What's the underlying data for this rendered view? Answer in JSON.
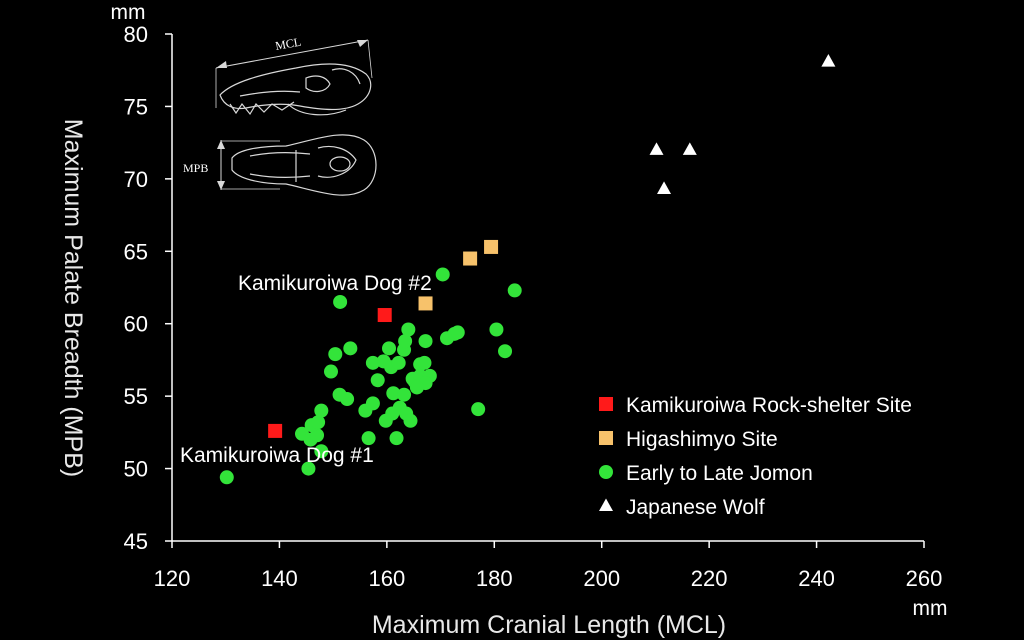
{
  "chart_data": {
    "type": "scatter",
    "title": "",
    "xlabel": "Maximum Cranial Length (MCL)",
    "ylabel": "Maximum Palate Breadth (MPB)",
    "x_unit": "mm",
    "y_unit": "mm",
    "xlim": [
      120,
      260
    ],
    "ylim": [
      45,
      80
    ],
    "x_ticks": [
      "120",
      "140",
      "160",
      "180",
      "200",
      "220",
      "240",
      "260"
    ],
    "y_ticks": [
      "45",
      "50",
      "55",
      "60",
      "65",
      "70",
      "75",
      "80"
    ],
    "grid": false,
    "legend_position": "bottom-right",
    "series": [
      {
        "name": "Kamikuroiwa Rock-shelter Site",
        "marker": "square",
        "color": "#ff1a1a",
        "points": [
          [
            139.2,
            52.6
          ],
          [
            159.6,
            60.6
          ]
        ]
      },
      {
        "name": "Higashimyo Site",
        "marker": "square",
        "color": "#f7c26b",
        "points": [
          [
            167.2,
            61.4
          ],
          [
            175.5,
            64.5
          ],
          [
            179.4,
            65.3
          ]
        ]
      },
      {
        "name": "Early to Late Jomon",
        "marker": "circle",
        "color": "#33e43a",
        "points": [
          [
            130.2,
            49.4
          ],
          [
            145.4,
            50.0
          ],
          [
            147.8,
            51.2
          ],
          [
            144.2,
            52.4
          ],
          [
            145.8,
            52.0
          ],
          [
            147.0,
            52.3
          ],
          [
            146.0,
            53.0
          ],
          [
            147.2,
            53.2
          ],
          [
            147.8,
            54.0
          ],
          [
            149.6,
            56.7
          ],
          [
            150.4,
            57.9
          ],
          [
            151.2,
            55.1
          ],
          [
            152.6,
            54.8
          ],
          [
            153.2,
            58.3
          ],
          [
            151.3,
            61.5
          ],
          [
            156.0,
            54.0
          ],
          [
            156.6,
            52.1
          ],
          [
            157.4,
            54.5
          ],
          [
            158.3,
            56.1
          ],
          [
            159.4,
            57.4
          ],
          [
            160.4,
            58.3
          ],
          [
            160.8,
            57.0
          ],
          [
            161.2,
            55.2
          ],
          [
            161.0,
            53.8
          ],
          [
            161.8,
            52.1
          ],
          [
            162.4,
            54.2
          ],
          [
            162.2,
            57.3
          ],
          [
            163.2,
            58.2
          ],
          [
            163.4,
            58.8
          ],
          [
            164.0,
            59.6
          ],
          [
            163.2,
            55.1
          ],
          [
            163.6,
            53.8
          ],
          [
            164.4,
            53.3
          ],
          [
            164.8,
            56.2
          ],
          [
            165.2,
            56.0
          ],
          [
            166.2,
            57.2
          ],
          [
            166.2,
            56.4
          ],
          [
            167.0,
            57.3
          ],
          [
            167.2,
            58.8
          ],
          [
            168.0,
            56.4
          ],
          [
            167.2,
            55.9
          ],
          [
            170.4,
            63.4
          ],
          [
            171.2,
            59.0
          ],
          [
            172.6,
            59.3
          ],
          [
            173.2,
            59.4
          ],
          [
            177.0,
            54.1
          ],
          [
            180.4,
            59.6
          ],
          [
            182.0,
            58.1
          ],
          [
            183.8,
            62.3
          ],
          [
            165.6,
            55.6
          ],
          [
            159.8,
            53.3
          ],
          [
            157.4,
            57.3
          ]
        ]
      },
      {
        "name": "Japanese Wolf",
        "marker": "triangle",
        "color": "#ffffff",
        "points": [
          [
            210.2,
            72.0
          ],
          [
            211.6,
            69.3
          ],
          [
            216.4,
            72.0
          ],
          [
            242.2,
            78.1
          ]
        ]
      }
    ],
    "annotations": [
      {
        "text": "Kamikuroiwa Dog #2"
      },
      {
        "text": "Kamikuroiwa Dog #1"
      }
    ]
  },
  "inset": {
    "mcl_label": "MCL",
    "mpb_label": "MPB"
  }
}
